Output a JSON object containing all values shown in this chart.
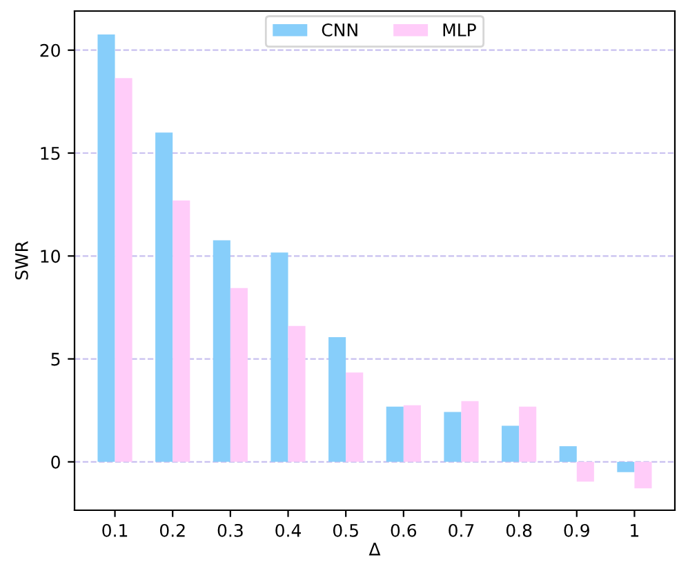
{
  "chart_data": {
    "type": "bar",
    "xlabel": "Δ",
    "ylabel": "SWR",
    "categories": [
      "0.1",
      "0.2",
      "0.3",
      "0.4",
      "0.5",
      "0.6",
      "0.7",
      "0.8",
      "0.9",
      "1"
    ],
    "series": [
      {
        "name": "CNN",
        "color": "#87cefa",
        "values": [
          20.76,
          16.0,
          10.76,
          10.17,
          6.06,
          2.68,
          2.42,
          1.75,
          0.76,
          -0.5
        ]
      },
      {
        "name": "MLP",
        "color": "#ffccf9",
        "values": [
          18.64,
          12.7,
          8.44,
          6.6,
          4.34,
          2.75,
          2.95,
          2.68,
          -0.96,
          -1.29
        ]
      }
    ],
    "ylim": [
      -2.35,
      21.9
    ],
    "yticks": [
      0,
      5,
      10,
      15,
      20
    ],
    "grid": "y",
    "legend": "top"
  }
}
